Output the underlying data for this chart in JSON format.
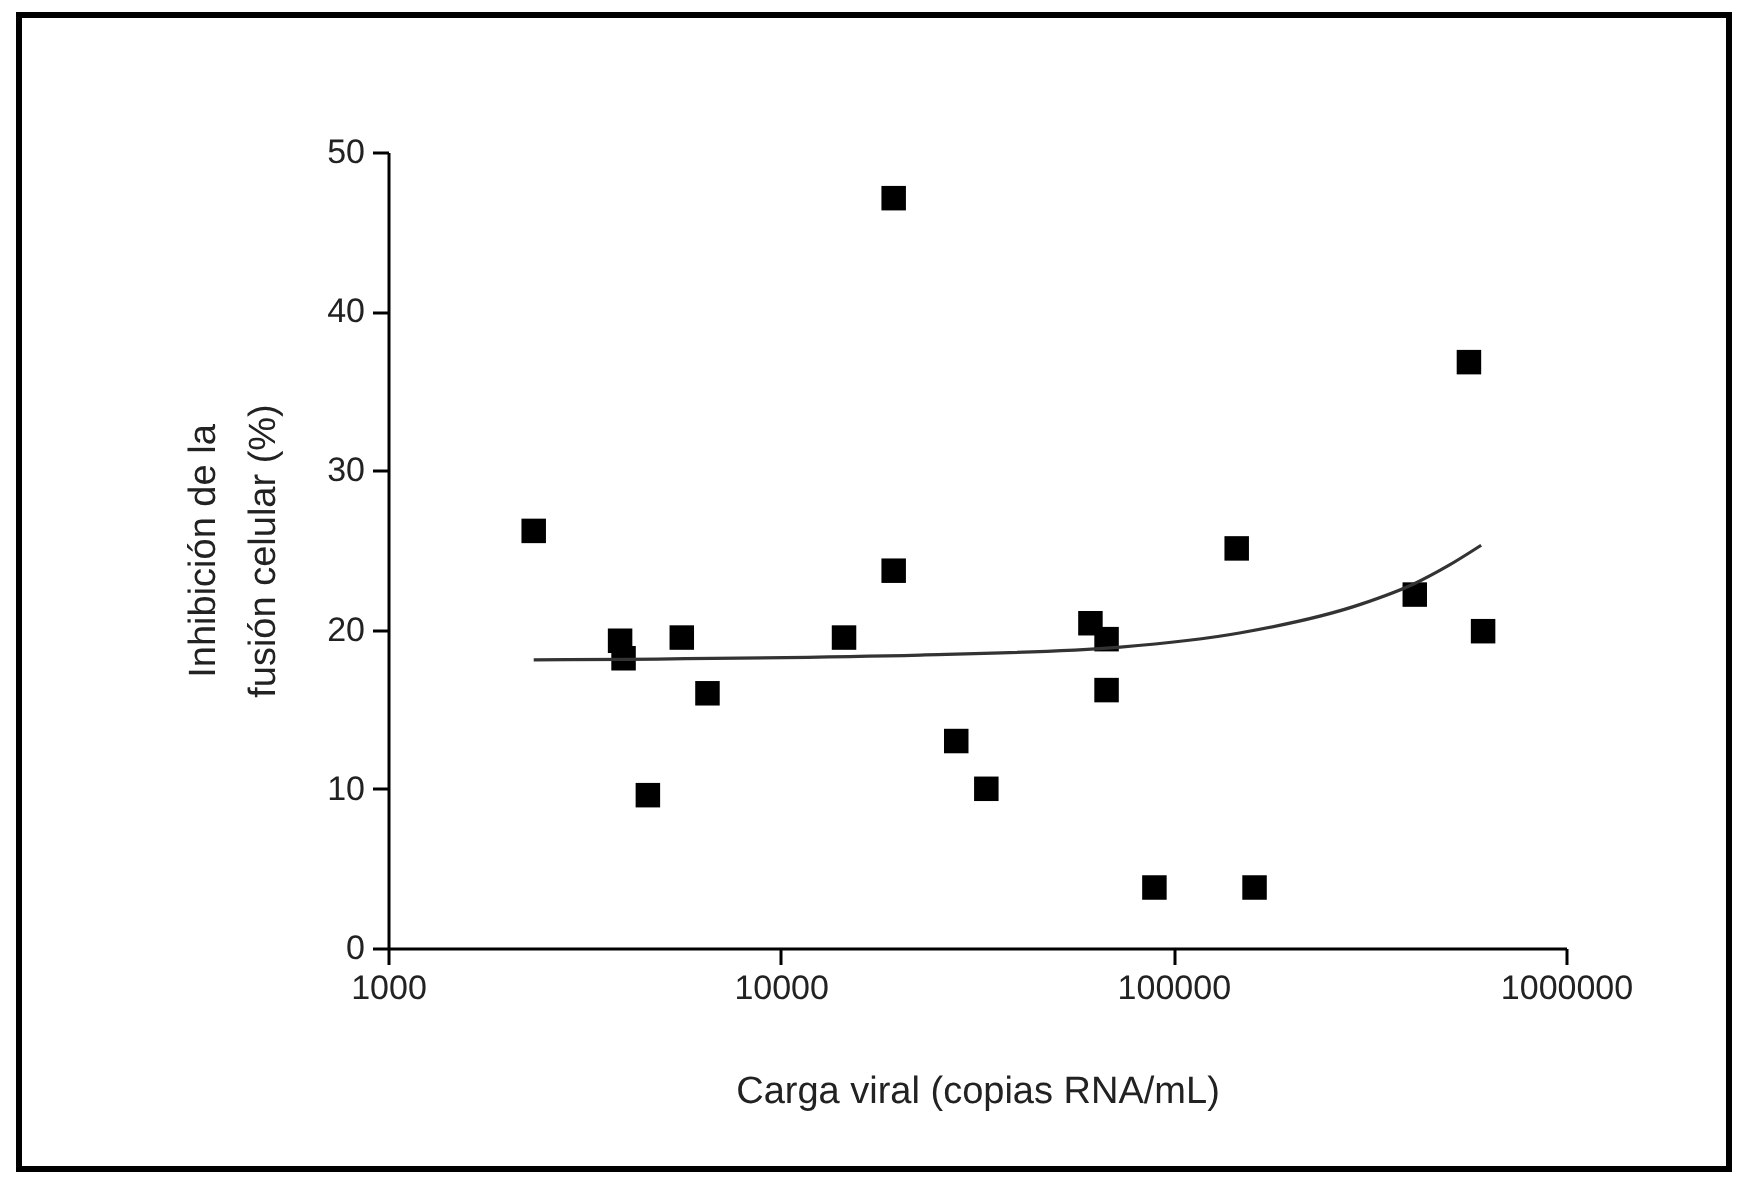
{
  "chart_data": {
    "type": "scatter",
    "xlabel": "Carga viral (copias RNA/mL)",
    "ylabel": "Inhibición de la\nfusión celular (%)",
    "log": "x",
    "xlim": [
      1000,
      1000000
    ],
    "xticks": [
      1000,
      10000,
      100000,
      1000000
    ],
    "ylim": [
      0,
      50
    ],
    "yticks": [
      0,
      10,
      20,
      30,
      40,
      50
    ],
    "grid": false,
    "marker": "square",
    "series": [
      {
        "type": "scatter",
        "color": "#000000",
        "x": [
          2350,
          3900,
          3980,
          4590,
          5600,
          6510,
          14500,
          19400,
          19400,
          28000,
          33400,
          61500,
          67600,
          67600,
          89500,
          145000,
          161000,
          412000,
          566000,
          615000
        ],
        "values": [
          26.2,
          19.3,
          18.2,
          9.6,
          19.5,
          16.0,
          19.5,
          47.1,
          23.7,
          13.0,
          10.0,
          20.4,
          19.4,
          16.2,
          3.8,
          25.1,
          3.8,
          22.2,
          36.8,
          19.9
        ]
      },
      {
        "type": "line",
        "color": "#333333",
        "marker": "none",
        "line_style": "solid",
        "x": [
          2350,
          22700,
          73300,
          148600,
          300800,
          412000,
          500000,
          608000
        ],
        "values": [
          18.1,
          18.4,
          18.9,
          19.8,
          21.6,
          22.9,
          24.0,
          25.3
        ]
      }
    ]
  }
}
